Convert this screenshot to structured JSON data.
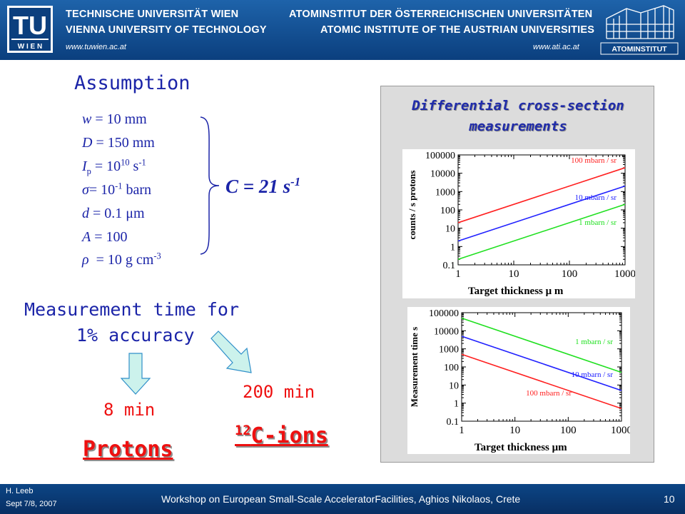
{
  "header": {
    "university_de": "TECHNISCHE UNIVERSITÄT WIEN",
    "university_en": "VIENNA UNIVERSITY OF TECHNOLOGY",
    "university_url": "www.tuwien.ac.at",
    "institute_de": "ATOMINSTITUT DER ÖSTERREICHISCHEN UNIVERSITÄTEN",
    "institute_en": "ATOMIC INSTITUTE OF THE AUSTRIAN UNIVERSITIES",
    "institute_url": "www.ati.ac.at",
    "tu_logo_top": "TU",
    "tu_logo_bottom": "W I E N",
    "ati_logo_text": "ATOMINSTITUT"
  },
  "slide": {
    "assumption_title": "Assumption",
    "params": {
      "w": "= 10 mm",
      "D": "= 150 mm",
      "Ip_pre": "= 10",
      "Ip_exp": "10",
      "Ip_unit": "s",
      "Ip_unit_exp": "-1",
      "sigma": "= 10",
      "sigma_exp": "-1",
      "sigma_unit": "barn",
      "d": "= 0.1 μm",
      "A": "= 100",
      "rho": "= 10 g cm",
      "rho_exp": "-3"
    },
    "result": "C = 21 s",
    "result_exp": "-1",
    "measurement_line1": "Measurement time for",
    "measurement_line2": "1% accuracy",
    "protons_time": "8 min",
    "protons_label": "Protons",
    "c_ions_time": "200 min",
    "c_ions_mass": "12",
    "c_ions_label": "C-ions"
  },
  "panel": {
    "title_line1": "Differential cross-section",
    "title_line2": "measurements"
  },
  "chart_data": [
    {
      "type": "line",
      "title": "",
      "xlabel": "Target thickness   μ m",
      "ylabel": "counts / s protons",
      "x_scale": "log",
      "y_scale": "log",
      "xlim": [
        1,
        1000
      ],
      "ylim": [
        0.1,
        100000
      ],
      "x_ticks": [
        "1",
        "10",
        "100",
        "1000"
      ],
      "y_ticks": [
        "0.1",
        "1",
        "10",
        "100",
        "1000",
        "10000",
        "100000"
      ],
      "series": [
        {
          "name": "100 mbarn / sr",
          "color": "#ff2020",
          "x": [
            1,
            1000
          ],
          "y": [
            20,
            20000
          ]
        },
        {
          "name": "10 mbarn / sr",
          "color": "#2020ff",
          "x": [
            1,
            1000
          ],
          "y": [
            2,
            2000
          ]
        },
        {
          "name": "1 mbarn / sr",
          "color": "#20e020",
          "x": [
            1,
            1000
          ],
          "y": [
            0.2,
            200
          ]
        }
      ]
    },
    {
      "type": "line",
      "title": "",
      "xlabel": "Target thickness   μm",
      "ylabel": "Measurement time   s",
      "x_scale": "log",
      "y_scale": "log",
      "xlim": [
        1,
        1000
      ],
      "ylim": [
        0.1,
        100000
      ],
      "x_ticks": [
        "1",
        "10",
        "100",
        "1000"
      ],
      "y_ticks": [
        "0.1",
        "1",
        "10",
        "100",
        "1000",
        "10000",
        "100000"
      ],
      "series": [
        {
          "name": "1 mbarn / sr",
          "color": "#20e020",
          "x": [
            1,
            1000
          ],
          "y": [
            50000,
            50
          ]
        },
        {
          "name": "10 mbarn / sr",
          "color": "#2020ff",
          "x": [
            1,
            1000
          ],
          "y": [
            5000,
            5
          ]
        },
        {
          "name": "100 mbarn / sr",
          "color": "#ff2020",
          "x": [
            1,
            1000
          ],
          "y": [
            500,
            0.5
          ]
        }
      ]
    }
  ],
  "footer": {
    "author": "H. Leeb",
    "date": "Sept 7/8, 2007",
    "event": "Workshop on European Small-Scale AcceleratorFacilities, Aghios Nikolaos, Crete",
    "page_number": "10"
  }
}
